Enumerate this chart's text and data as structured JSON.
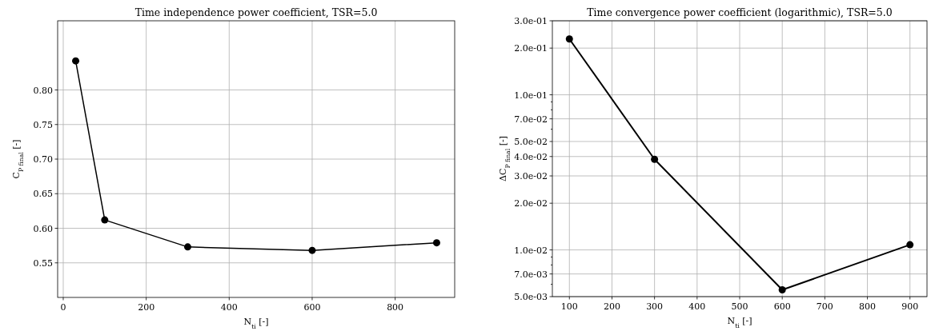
{
  "chart_data": [
    {
      "type": "line",
      "title": "Time independence power coefficient, TSR=5.0",
      "xlabel": "N$_{ti}$ [-]",
      "ylabel": "C$_{P final}$ [-]",
      "x": [
        30,
        100,
        300,
        600,
        900
      ],
      "series": [
        {
          "color": "#000000",
          "values": [
            0.842,
            0.612,
            0.573,
            0.568,
            0.579
          ]
        }
      ],
      "xlim": [
        -13.5,
        943.5
      ],
      "ylim": [
        0.5,
        0.9
      ],
      "xticks": [
        0,
        200,
        400,
        600,
        800
      ],
      "yticks": [
        {
          "value": 0.55,
          "label": "0.55"
        },
        {
          "value": 0.6,
          "label": "0.60"
        },
        {
          "value": 0.65,
          "label": "0.65"
        },
        {
          "value": 0.7,
          "label": "0.70"
        },
        {
          "value": 0.75,
          "label": "0.75"
        },
        {
          "value": 0.8,
          "label": "0.80"
        }
      ],
      "grid": true,
      "marker": "circle",
      "line_style": "solid"
    },
    {
      "type": "line",
      "title": "Time convergence power coefficient (logarithmic), TSR=5.0",
      "xlabel": "N$_{ti}$ [-]",
      "ylabel": "ΔC$_{P final}$ [-]",
      "x": [
        100,
        300,
        600,
        900
      ],
      "series": [
        {
          "color": "#000000",
          "values": [
            0.229,
            0.0384,
            0.00553,
            0.0108
          ]
        }
      ],
      "xlim": [
        60,
        940
      ],
      "ylim": [
        0.005,
        0.3
      ],
      "log": "y",
      "xticks": [
        100,
        200,
        300,
        400,
        500,
        600,
        700,
        800,
        900
      ],
      "yticks": [
        {
          "value": 0.005,
          "label": "5.0e-03"
        },
        {
          "value": 0.006,
          "label": null
        },
        {
          "value": 0.007,
          "label": "7.0e-03"
        },
        {
          "value": 0.008,
          "label": null
        },
        {
          "value": 0.009,
          "label": null
        },
        {
          "value": 0.01,
          "label": "1.0e-02"
        },
        {
          "value": 0.02,
          "label": "2.0e-02"
        },
        {
          "value": 0.03,
          "label": "3.0e-02"
        },
        {
          "value": 0.04,
          "label": "4.0e-02"
        },
        {
          "value": 0.05,
          "label": "5.0e-02"
        },
        {
          "value": 0.06,
          "label": null
        },
        {
          "value": 0.07,
          "label": "7.0e-02"
        },
        {
          "value": 0.08,
          "label": null
        },
        {
          "value": 0.09,
          "label": null
        },
        {
          "value": 0.1,
          "label": "1.0e-01"
        },
        {
          "value": 0.2,
          "label": "2.0e-01"
        },
        {
          "value": 0.3,
          "label": "3.0e-01"
        }
      ],
      "grid": true,
      "marker": "circle",
      "line_style": "solid"
    }
  ]
}
